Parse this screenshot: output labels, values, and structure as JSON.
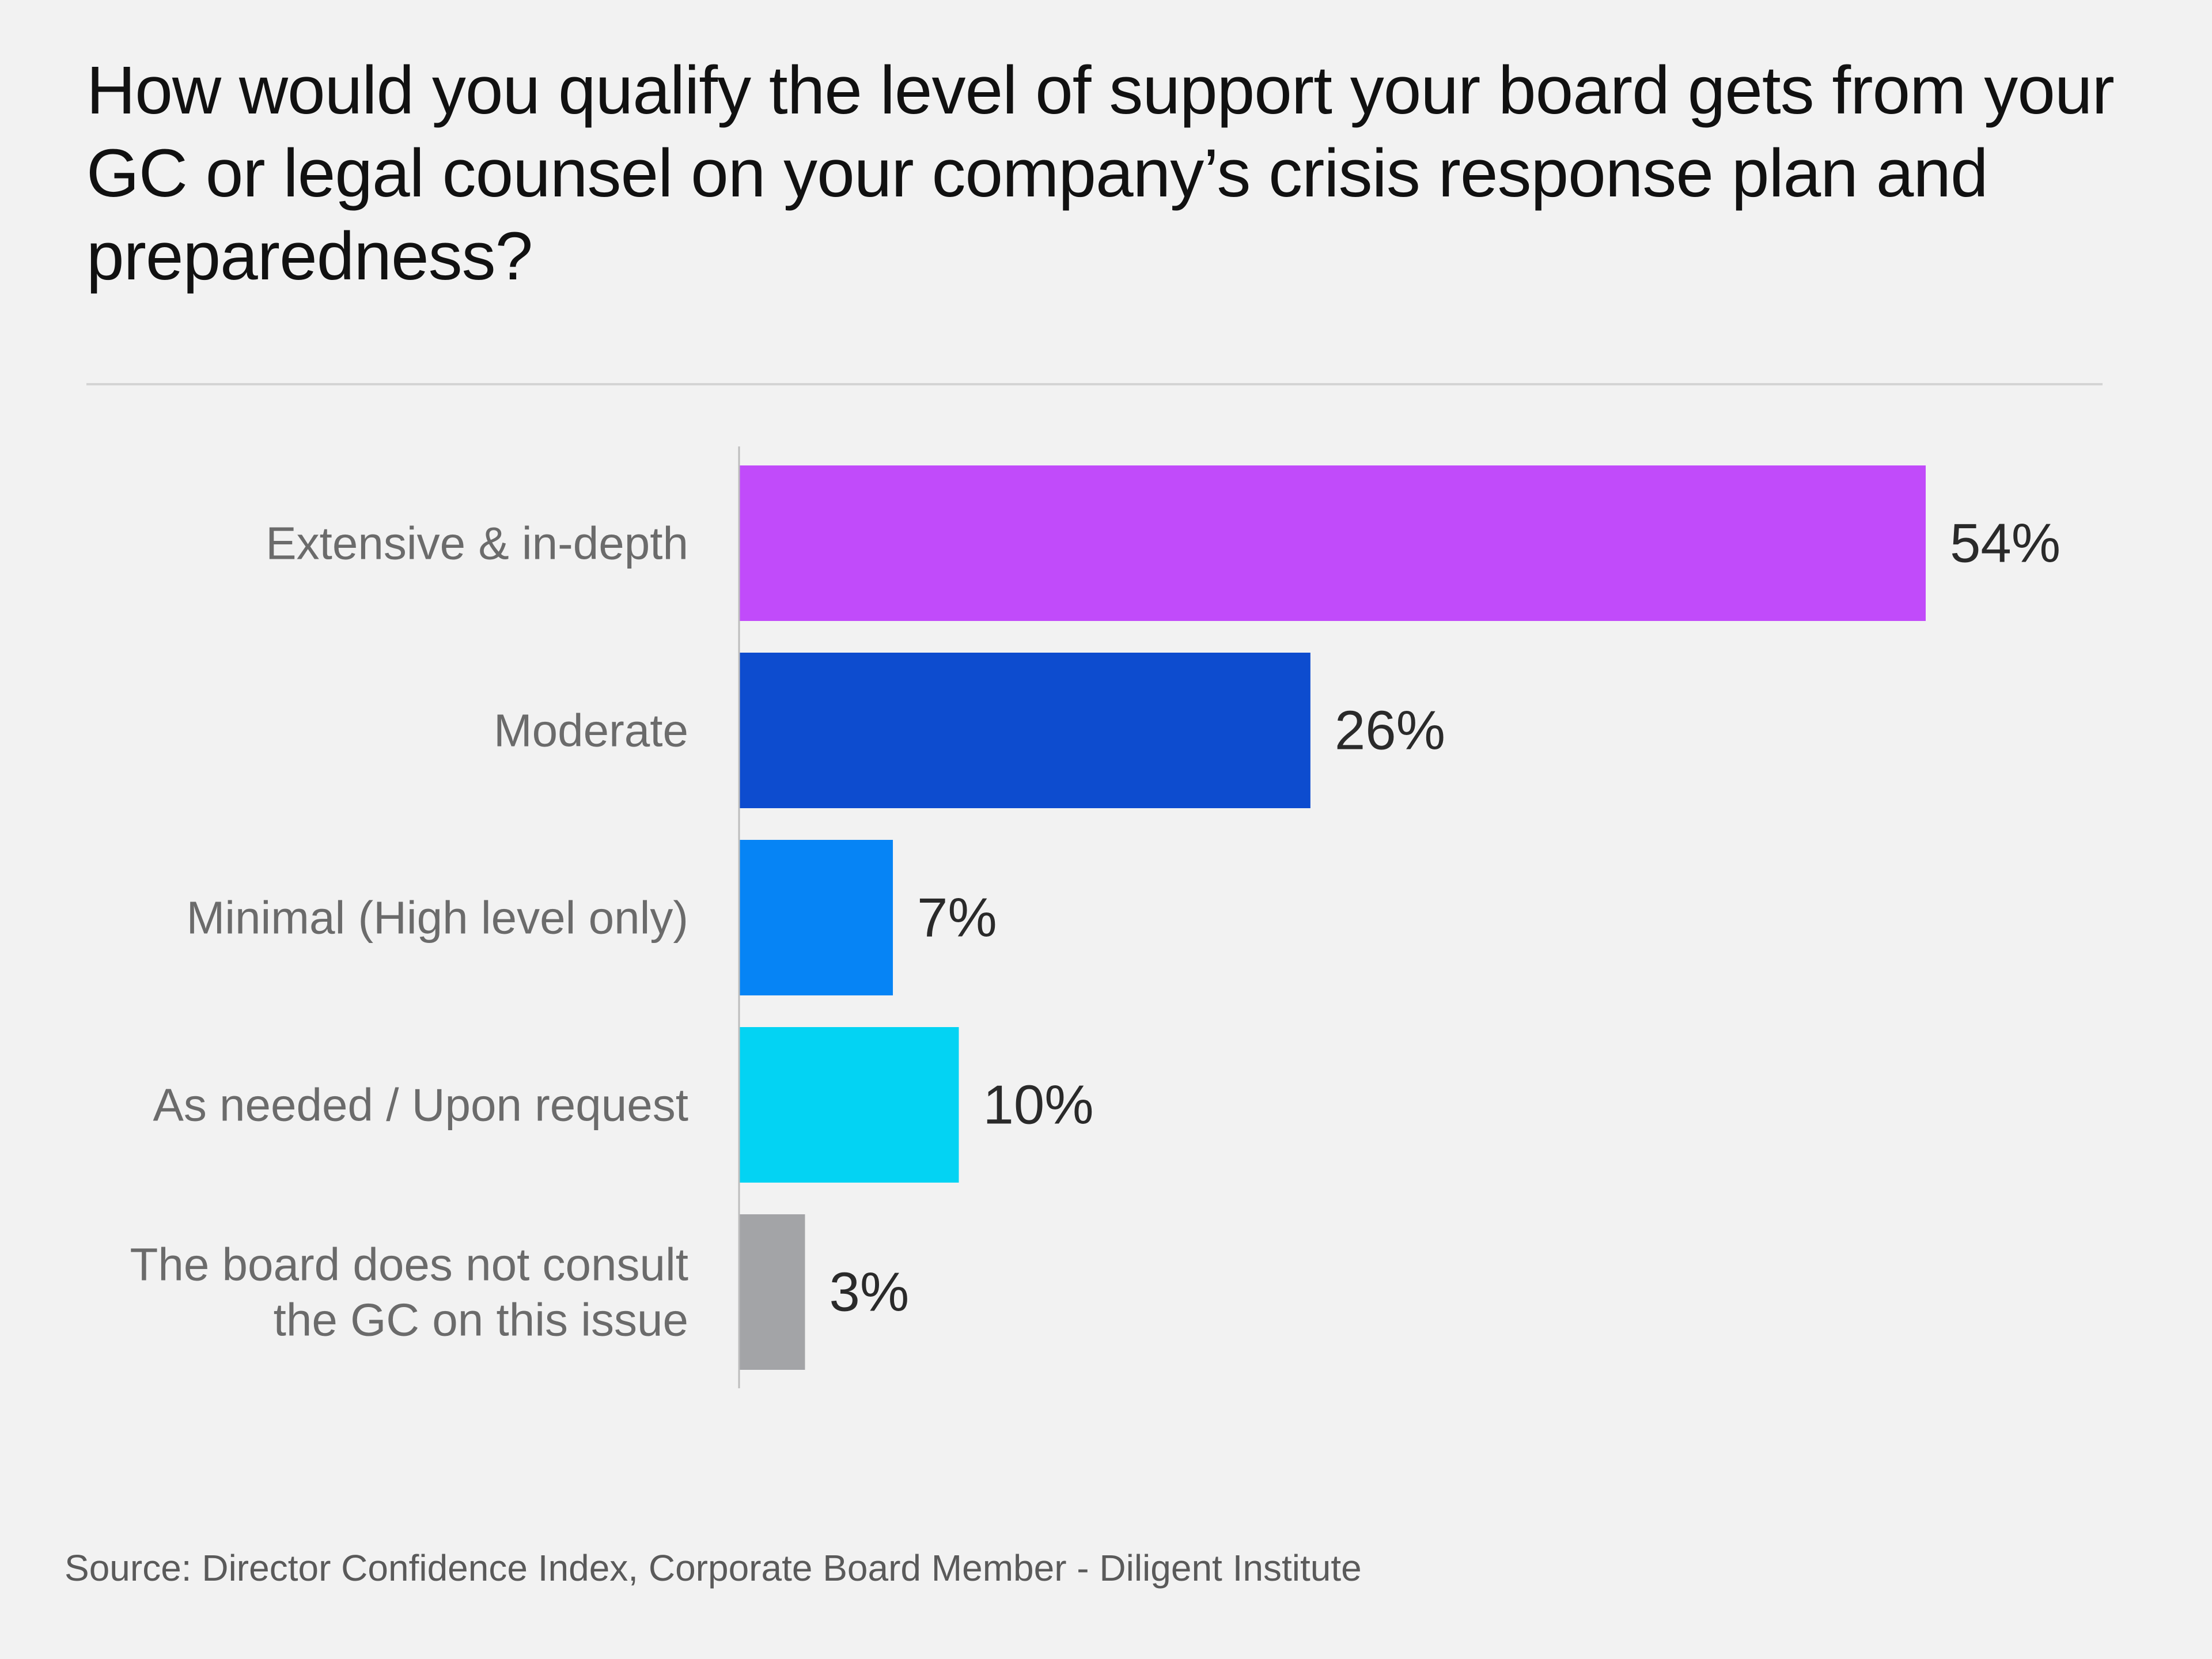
{
  "title": "How would you qualify the level of support your board gets from your GC or legal counsel on your company’s crisis response plan and preparedness?",
  "source": "Source: Director Confidence Index, Corporate Board Member - Diligent Institute",
  "chart_data": {
    "type": "bar",
    "orientation": "horizontal",
    "categories": [
      [
        "Extensive & in-depth"
      ],
      [
        "Moderate"
      ],
      [
        "Minimal (High level only)"
      ],
      [
        "As needed / Upon request"
      ],
      [
        "The board does not consult",
        "the GC on this issue"
      ]
    ],
    "values": [
      54,
      26,
      7,
      10,
      3
    ],
    "value_labels": [
      "54%",
      "26%",
      "7%",
      "10%",
      "3%"
    ],
    "colors": [
      "#c14bfa",
      "#0d4ccf",
      "#0684f5",
      "#03d3f3",
      "#a3a4a7"
    ],
    "xlim": [
      0,
      54
    ],
    "grid": false,
    "legend": "none"
  }
}
